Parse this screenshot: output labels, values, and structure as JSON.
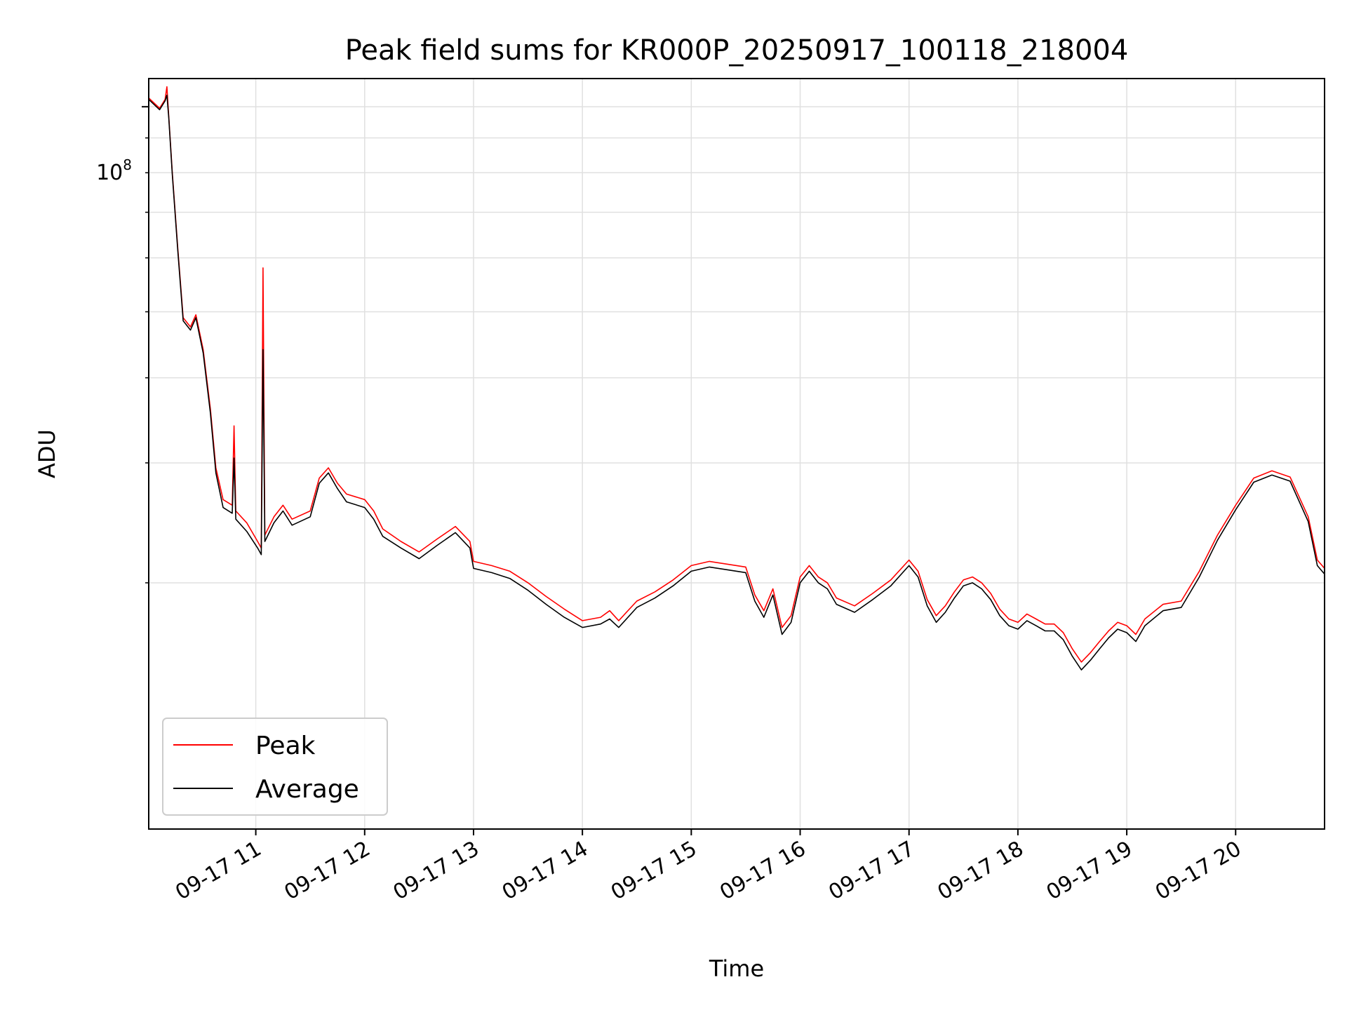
{
  "chart_data": {
    "type": "line",
    "title": "Peak field sums for KR000P_20250917_100118_218004",
    "xlabel": "Time",
    "ylabel": "ADU",
    "xlim": [
      "2025-09-17 10:01",
      "2025-09-17 20:49"
    ],
    "ylim": [
      8700000,
      110000000
    ],
    "yscale": "log",
    "grid": true,
    "legend_position": "lower-left",
    "x_tick_labels": [
      "09-17 11",
      "09-17 12",
      "09-17 13",
      "09-17 14",
      "09-17 15",
      "09-17 16",
      "09-17 17",
      "09-17 18",
      "09-17 19",
      "09-17 20"
    ],
    "x_ticks": [
      "2025-09-17 11:00",
      "2025-09-17 12:00",
      "2025-09-17 13:00",
      "2025-09-17 14:00",
      "2025-09-17 15:00",
      "2025-09-17 16:00",
      "2025-09-17 17:00",
      "2025-09-17 18:00",
      "2025-09-17 19:00",
      "2025-09-17 20:00"
    ],
    "y_major_tick": {
      "value": 100000000,
      "base": "10",
      "exponent": "8"
    },
    "y_minor_ticks": [
      20000000,
      30000000,
      40000000,
      50000000,
      60000000,
      70000000,
      80000000,
      90000000
    ],
    "series": [
      {
        "name": "Peak",
        "color": "#ff0000",
        "points": [
          [
            "2025-09-17 10:01",
            103000000
          ],
          [
            "2025-09-17 10:07",
            99500000
          ],
          [
            "2025-09-17 10:10",
            102500000
          ],
          [
            "2025-09-17 10:11",
            107000000
          ],
          [
            "2025-09-17 10:12",
            97000000
          ],
          [
            "2025-09-17 10:14",
            80000000
          ],
          [
            "2025-09-17 10:17",
            62000000
          ],
          [
            "2025-09-17 10:20",
            49000000
          ],
          [
            "2025-09-17 10:24",
            47500000
          ],
          [
            "2025-09-17 10:27",
            49500000
          ],
          [
            "2025-09-17 10:31",
            44000000
          ],
          [
            "2025-09-17 10:35",
            36000000
          ],
          [
            "2025-09-17 10:38",
            29500000
          ],
          [
            "2025-09-17 10:42",
            26500000
          ],
          [
            "2025-09-17 10:47",
            26000000
          ],
          [
            "2025-09-17 10:48",
            34000000
          ],
          [
            "2025-09-17 10:49",
            25500000
          ],
          [
            "2025-09-17 10:55",
            24500000
          ],
          [
            "2025-09-17 11:01",
            23000000
          ],
          [
            "2025-09-17 11:03",
            22500000
          ],
          [
            "2025-09-17 11:04",
            58000000
          ],
          [
            "2025-09-17 11:05",
            23500000
          ],
          [
            "2025-09-17 11:10",
            25000000
          ],
          [
            "2025-09-17 11:15",
            26000000
          ],
          [
            "2025-09-17 11:20",
            24800000
          ],
          [
            "2025-09-17 11:30",
            25500000
          ],
          [
            "2025-09-17 11:35",
            28500000
          ],
          [
            "2025-09-17 11:40",
            29500000
          ],
          [
            "2025-09-17 11:45",
            28000000
          ],
          [
            "2025-09-17 11:50",
            27000000
          ],
          [
            "2025-09-17 12:00",
            26500000
          ],
          [
            "2025-09-17 12:05",
            25500000
          ],
          [
            "2025-09-17 12:10",
            24000000
          ],
          [
            "2025-09-17 12:20",
            23000000
          ],
          [
            "2025-09-17 12:30",
            22200000
          ],
          [
            "2025-09-17 12:40",
            23200000
          ],
          [
            "2025-09-17 12:50",
            24200000
          ],
          [
            "2025-09-17 12:58",
            23000000
          ],
          [
            "2025-09-17 13:00",
            21500000
          ],
          [
            "2025-09-17 13:10",
            21200000
          ],
          [
            "2025-09-17 13:20",
            20800000
          ],
          [
            "2025-09-17 13:30",
            20000000
          ],
          [
            "2025-09-17 13:40",
            19100000
          ],
          [
            "2025-09-17 13:50",
            18300000
          ],
          [
            "2025-09-17 14:00",
            17600000
          ],
          [
            "2025-09-17 14:10",
            17800000
          ],
          [
            "2025-09-17 14:15",
            18200000
          ],
          [
            "2025-09-17 14:20",
            17600000
          ],
          [
            "2025-09-17 14:30",
            18800000
          ],
          [
            "2025-09-17 14:40",
            19400000
          ],
          [
            "2025-09-17 14:50",
            20200000
          ],
          [
            "2025-09-17 15:00",
            21200000
          ],
          [
            "2025-09-17 15:10",
            21500000
          ],
          [
            "2025-09-17 15:20",
            21300000
          ],
          [
            "2025-09-17 15:30",
            21100000
          ],
          [
            "2025-09-17 15:35",
            19200000
          ],
          [
            "2025-09-17 15:40",
            18200000
          ],
          [
            "2025-09-17 15:45",
            19600000
          ],
          [
            "2025-09-17 15:50",
            17200000
          ],
          [
            "2025-09-17 15:55",
            17900000
          ],
          [
            "2025-09-17 16:00",
            20400000
          ],
          [
            "2025-09-17 16:05",
            21200000
          ],
          [
            "2025-09-17 16:10",
            20400000
          ],
          [
            "2025-09-17 16:15",
            20000000
          ],
          [
            "2025-09-17 16:20",
            19000000
          ],
          [
            "2025-09-17 16:30",
            18500000
          ],
          [
            "2025-09-17 16:40",
            19300000
          ],
          [
            "2025-09-17 16:50",
            20200000
          ],
          [
            "2025-09-17 17:00",
            21600000
          ],
          [
            "2025-09-17 17:05",
            20800000
          ],
          [
            "2025-09-17 17:10",
            18900000
          ],
          [
            "2025-09-17 17:15",
            17900000
          ],
          [
            "2025-09-17 17:20",
            18500000
          ],
          [
            "2025-09-17 17:25",
            19400000
          ],
          [
            "2025-09-17 17:30",
            20200000
          ],
          [
            "2025-09-17 17:35",
            20400000
          ],
          [
            "2025-09-17 17:40",
            20000000
          ],
          [
            "2025-09-17 17:45",
            19300000
          ],
          [
            "2025-09-17 17:50",
            18300000
          ],
          [
            "2025-09-17 17:55",
            17700000
          ],
          [
            "2025-09-17 18:00",
            17500000
          ],
          [
            "2025-09-17 18:05",
            18000000
          ],
          [
            "2025-09-17 18:10",
            17700000
          ],
          [
            "2025-09-17 18:15",
            17400000
          ],
          [
            "2025-09-17 18:20",
            17400000
          ],
          [
            "2025-09-17 18:25",
            16900000
          ],
          [
            "2025-09-17 18:30",
            16000000
          ],
          [
            "2025-09-17 18:35",
            15300000
          ],
          [
            "2025-09-17 18:40",
            15800000
          ],
          [
            "2025-09-17 18:45",
            16400000
          ],
          [
            "2025-09-17 18:50",
            17000000
          ],
          [
            "2025-09-17 18:55",
            17500000
          ],
          [
            "2025-09-17 19:00",
            17300000
          ],
          [
            "2025-09-17 19:05",
            16800000
          ],
          [
            "2025-09-17 19:10",
            17700000
          ],
          [
            "2025-09-17 19:20",
            18600000
          ],
          [
            "2025-09-17 19:30",
            18800000
          ],
          [
            "2025-09-17 19:40",
            20800000
          ],
          [
            "2025-09-17 19:50",
            23500000
          ],
          [
            "2025-09-17 20:00",
            26000000
          ],
          [
            "2025-09-17 20:10",
            28500000
          ],
          [
            "2025-09-17 20:20",
            29200000
          ],
          [
            "2025-09-17 20:30",
            28600000
          ],
          [
            "2025-09-17 20:40",
            25000000
          ],
          [
            "2025-09-17 20:45",
            21600000
          ],
          [
            "2025-09-17 20:49",
            21000000
          ]
        ]
      },
      {
        "name": "Average",
        "color": "#000000",
        "points": [
          [
            "2025-09-17 10:01",
            102500000
          ],
          [
            "2025-09-17 10:07",
            99000000
          ],
          [
            "2025-09-17 10:10",
            102000000
          ],
          [
            "2025-09-17 10:11",
            104000000
          ],
          [
            "2025-09-17 10:12",
            96500000
          ],
          [
            "2025-09-17 10:14",
            79500000
          ],
          [
            "2025-09-17 10:17",
            61500000
          ],
          [
            "2025-09-17 10:20",
            48500000
          ],
          [
            "2025-09-17 10:24",
            47000000
          ],
          [
            "2025-09-17 10:27",
            49000000
          ],
          [
            "2025-09-17 10:31",
            43500000
          ],
          [
            "2025-09-17 10:35",
            35500000
          ],
          [
            "2025-09-17 10:38",
            29000000
          ],
          [
            "2025-09-17 10:42",
            25800000
          ],
          [
            "2025-09-17 10:47",
            25300000
          ],
          [
            "2025-09-17 10:48",
            30500000
          ],
          [
            "2025-09-17 10:49",
            24800000
          ],
          [
            "2025-09-17 10:55",
            23800000
          ],
          [
            "2025-09-17 11:01",
            22500000
          ],
          [
            "2025-09-17 11:03",
            22000000
          ],
          [
            "2025-09-17 11:04",
            44000000
          ],
          [
            "2025-09-17 11:05",
            23000000
          ],
          [
            "2025-09-17 11:10",
            24500000
          ],
          [
            "2025-09-17 11:15",
            25500000
          ],
          [
            "2025-09-17 11:20",
            24300000
          ],
          [
            "2025-09-17 11:30",
            25000000
          ],
          [
            "2025-09-17 11:35",
            28000000
          ],
          [
            "2025-09-17 11:40",
            29000000
          ],
          [
            "2025-09-17 11:45",
            27500000
          ],
          [
            "2025-09-17 11:50",
            26300000
          ],
          [
            "2025-09-17 12:00",
            25800000
          ],
          [
            "2025-09-17 12:05",
            24800000
          ],
          [
            "2025-09-17 12:10",
            23400000
          ],
          [
            "2025-09-17 12:20",
            22500000
          ],
          [
            "2025-09-17 12:30",
            21700000
          ],
          [
            "2025-09-17 12:40",
            22700000
          ],
          [
            "2025-09-17 12:50",
            23700000
          ],
          [
            "2025-09-17 12:58",
            22500000
          ],
          [
            "2025-09-17 13:00",
            21000000
          ],
          [
            "2025-09-17 13:10",
            20700000
          ],
          [
            "2025-09-17 13:20",
            20300000
          ],
          [
            "2025-09-17 13:30",
            19500000
          ],
          [
            "2025-09-17 13:40",
            18600000
          ],
          [
            "2025-09-17 13:50",
            17800000
          ],
          [
            "2025-09-17 14:00",
            17200000
          ],
          [
            "2025-09-17 14:10",
            17400000
          ],
          [
            "2025-09-17 14:15",
            17700000
          ],
          [
            "2025-09-17 14:20",
            17200000
          ],
          [
            "2025-09-17 14:30",
            18400000
          ],
          [
            "2025-09-17 14:40",
            19000000
          ],
          [
            "2025-09-17 14:50",
            19800000
          ],
          [
            "2025-09-17 15:00",
            20800000
          ],
          [
            "2025-09-17 15:10",
            21100000
          ],
          [
            "2025-09-17 15:20",
            20900000
          ],
          [
            "2025-09-17 15:30",
            20700000
          ],
          [
            "2025-09-17 15:35",
            18800000
          ],
          [
            "2025-09-17 15:40",
            17800000
          ],
          [
            "2025-09-17 15:45",
            19200000
          ],
          [
            "2025-09-17 15:50",
            16800000
          ],
          [
            "2025-09-17 15:55",
            17500000
          ],
          [
            "2025-09-17 16:00",
            20000000
          ],
          [
            "2025-09-17 16:05",
            20800000
          ],
          [
            "2025-09-17 16:10",
            20000000
          ],
          [
            "2025-09-17 16:15",
            19600000
          ],
          [
            "2025-09-17 16:20",
            18600000
          ],
          [
            "2025-09-17 16:30",
            18100000
          ],
          [
            "2025-09-17 16:40",
            18900000
          ],
          [
            "2025-09-17 16:50",
            19800000
          ],
          [
            "2025-09-17 17:00",
            21200000
          ],
          [
            "2025-09-17 17:05",
            20400000
          ],
          [
            "2025-09-17 17:10",
            18500000
          ],
          [
            "2025-09-17 17:15",
            17500000
          ],
          [
            "2025-09-17 17:20",
            18100000
          ],
          [
            "2025-09-17 17:25",
            19000000
          ],
          [
            "2025-09-17 17:30",
            19800000
          ],
          [
            "2025-09-17 17:35",
            20000000
          ],
          [
            "2025-09-17 17:40",
            19600000
          ],
          [
            "2025-09-17 17:45",
            18900000
          ],
          [
            "2025-09-17 17:50",
            17900000
          ],
          [
            "2025-09-17 17:55",
            17300000
          ],
          [
            "2025-09-17 18:00",
            17100000
          ],
          [
            "2025-09-17 18:05",
            17600000
          ],
          [
            "2025-09-17 18:10",
            17300000
          ],
          [
            "2025-09-17 18:15",
            17000000
          ],
          [
            "2025-09-17 18:20",
            17000000
          ],
          [
            "2025-09-17 18:25",
            16500000
          ],
          [
            "2025-09-17 18:30",
            15600000
          ],
          [
            "2025-09-17 18:35",
            14900000
          ],
          [
            "2025-09-17 18:40",
            15400000
          ],
          [
            "2025-09-17 18:45",
            16000000
          ],
          [
            "2025-09-17 18:50",
            16600000
          ],
          [
            "2025-09-17 18:55",
            17100000
          ],
          [
            "2025-09-17 19:00",
            16900000
          ],
          [
            "2025-09-17 19:05",
            16400000
          ],
          [
            "2025-09-17 19:10",
            17300000
          ],
          [
            "2025-09-17 19:20",
            18200000
          ],
          [
            "2025-09-17 19:30",
            18400000
          ],
          [
            "2025-09-17 19:40",
            20400000
          ],
          [
            "2025-09-17 19:50",
            23100000
          ],
          [
            "2025-09-17 20:00",
            25600000
          ],
          [
            "2025-09-17 20:10",
            28100000
          ],
          [
            "2025-09-17 20:20",
            28800000
          ],
          [
            "2025-09-17 20:30",
            28200000
          ],
          [
            "2025-09-17 20:40",
            24600000
          ],
          [
            "2025-09-17 20:45",
            21200000
          ],
          [
            "2025-09-17 20:49",
            20600000
          ]
        ]
      }
    ]
  }
}
